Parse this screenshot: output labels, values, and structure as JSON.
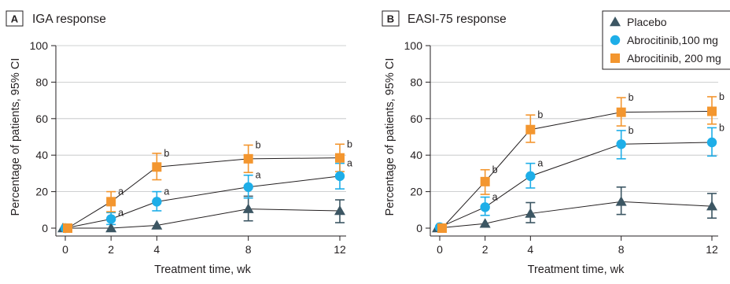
{
  "colors": {
    "placebo": "#3c5663",
    "abro100": "#1eaee8",
    "abro200": "#f3962f"
  },
  "legend": [
    {
      "label": "Placebo",
      "series": "placebo",
      "marker": "triangle"
    },
    {
      "label": "Abrocitinib,100 mg",
      "series": "abro100",
      "marker": "circle"
    },
    {
      "label": "Abrocitinib, 200 mg",
      "series": "abro200",
      "marker": "square"
    }
  ],
  "chart_data": [
    {
      "type": "line",
      "panel": "A",
      "title": "IGA response",
      "xlabel": "Treatment time, wk",
      "ylabel": "Percentage of patients, 95% CI",
      "x": [
        0,
        2,
        4,
        8,
        12
      ],
      "xticks": [
        "0",
        "2",
        "4",
        "8",
        "12"
      ],
      "yticks": [
        "0",
        "20",
        "40",
        "60",
        "80",
        "100"
      ],
      "xlim": [
        0,
        12
      ],
      "ylim": [
        0,
        100
      ],
      "grid": "horizontal",
      "series": [
        {
          "name": "Placebo",
          "key": "placebo",
          "marker": "triangle",
          "values": [
            0,
            0,
            1.5,
            10.5,
            9.5
          ],
          "ci_low": [
            null,
            null,
            null,
            4,
            3
          ],
          "ci_high": [
            null,
            null,
            null,
            17.5,
            15.5
          ],
          "labels": [
            "",
            "",
            "",
            "",
            ""
          ]
        },
        {
          "name": "Abrocitinib,100 mg",
          "key": "abro100",
          "marker": "circle",
          "values": [
            0,
            5,
            14.5,
            22.5,
            28.5
          ],
          "ci_low": [
            null,
            2,
            9.5,
            16.5,
            21.5
          ],
          "ci_high": [
            null,
            8.5,
            20,
            29,
            35.5
          ],
          "labels": [
            "",
            "a",
            "a",
            "a",
            "a"
          ]
        },
        {
          "name": "Abrocitinib, 200 mg",
          "key": "abro200",
          "marker": "square",
          "values": [
            0,
            14.5,
            33.5,
            38,
            38.5
          ],
          "ci_low": [
            null,
            9,
            26.5,
            30.5,
            31
          ],
          "ci_high": [
            null,
            20,
            41,
            45.5,
            46
          ],
          "labels": [
            "",
            "a",
            "b",
            "b",
            "b"
          ]
        }
      ]
    },
    {
      "type": "line",
      "panel": "B",
      "title": "EASI-75 response",
      "xlabel": "Treatment time, wk",
      "ylabel": "Percentage of patients, 95% CI",
      "x": [
        0,
        2,
        4,
        8,
        12
      ],
      "xticks": [
        "0",
        "2",
        "4",
        "8",
        "12"
      ],
      "yticks": [
        "0",
        "20",
        "40",
        "60",
        "80",
        "100"
      ],
      "xlim": [
        0,
        12
      ],
      "ylim": [
        0,
        100
      ],
      "grid": "horizontal",
      "series": [
        {
          "name": "Placebo",
          "key": "placebo",
          "marker": "triangle",
          "values": [
            0,
            2.5,
            8,
            14.5,
            12
          ],
          "ci_low": [
            null,
            null,
            3,
            7.5,
            5.5
          ],
          "ci_high": [
            null,
            null,
            14,
            22.5,
            19
          ],
          "labels": [
            "",
            "",
            "",
            "",
            ""
          ]
        },
        {
          "name": "Abrocitinib,100 mg",
          "key": "abro100",
          "marker": "circle",
          "values": [
            0.5,
            11.5,
            28.5,
            46,
            47
          ],
          "ci_low": [
            null,
            7,
            22,
            38,
            39.5
          ],
          "ci_high": [
            null,
            17,
            35.5,
            53.5,
            55
          ],
          "labels": [
            "",
            "a",
            "a",
            "b",
            "b"
          ]
        },
        {
          "name": "Abrocitinib, 200 mg",
          "key": "abro200",
          "marker": "square",
          "values": [
            0,
            25.5,
            54,
            63.5,
            64
          ],
          "ci_low": [
            null,
            18.5,
            47,
            56,
            57
          ],
          "ci_high": [
            null,
            32,
            62,
            71.5,
            72
          ],
          "labels": [
            "",
            "b",
            "b",
            "b",
            "b"
          ]
        }
      ]
    }
  ]
}
